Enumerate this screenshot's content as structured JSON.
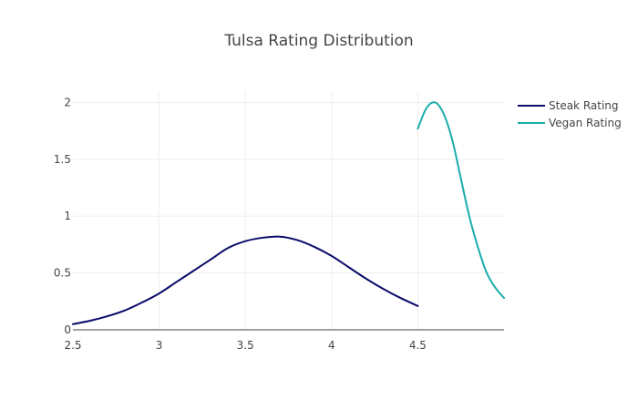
{
  "chart_data": {
    "type": "line",
    "title": "Tulsa Rating Distribution",
    "xlabel": "",
    "ylabel": "",
    "xlim": [
      2.5,
      5.0
    ],
    "ylim": [
      0,
      2.1
    ],
    "x_ticks": [
      2.5,
      3,
      3.5,
      4,
      4.5
    ],
    "x_tick_labels": [
      "2.5",
      "3",
      "3.5",
      "4",
      "4.5"
    ],
    "y_ticks": [
      0,
      0.5,
      1,
      1.5,
      2
    ],
    "y_tick_labels": [
      "0",
      "0.5",
      "1",
      "1.5",
      "2"
    ],
    "grid": true,
    "legend_position": "top-right",
    "series": [
      {
        "name": "Steak Rating",
        "color": "#0a0a6b",
        "x": [
          2.5,
          2.6,
          2.7,
          2.8,
          2.9,
          3.0,
          3.1,
          3.2,
          3.3,
          3.4,
          3.5,
          3.6,
          3.7,
          3.8,
          3.9,
          4.0,
          4.1,
          4.2,
          4.3,
          4.4,
          4.5
        ],
        "y": [
          0.05,
          0.08,
          0.12,
          0.17,
          0.24,
          0.32,
          0.42,
          0.52,
          0.62,
          0.72,
          0.78,
          0.81,
          0.82,
          0.79,
          0.73,
          0.65,
          0.55,
          0.45,
          0.36,
          0.28,
          0.21
        ]
      },
      {
        "name": "Vegan Rating",
        "color": "#1aacac",
        "x": [
          4.5,
          4.55,
          4.6,
          4.65,
          4.7,
          4.75,
          4.8,
          4.85,
          4.9,
          4.95,
          5.0
        ],
        "y": [
          1.77,
          1.95,
          2.0,
          1.9,
          1.67,
          1.33,
          0.99,
          0.72,
          0.5,
          0.37,
          0.28
        ]
      }
    ]
  }
}
